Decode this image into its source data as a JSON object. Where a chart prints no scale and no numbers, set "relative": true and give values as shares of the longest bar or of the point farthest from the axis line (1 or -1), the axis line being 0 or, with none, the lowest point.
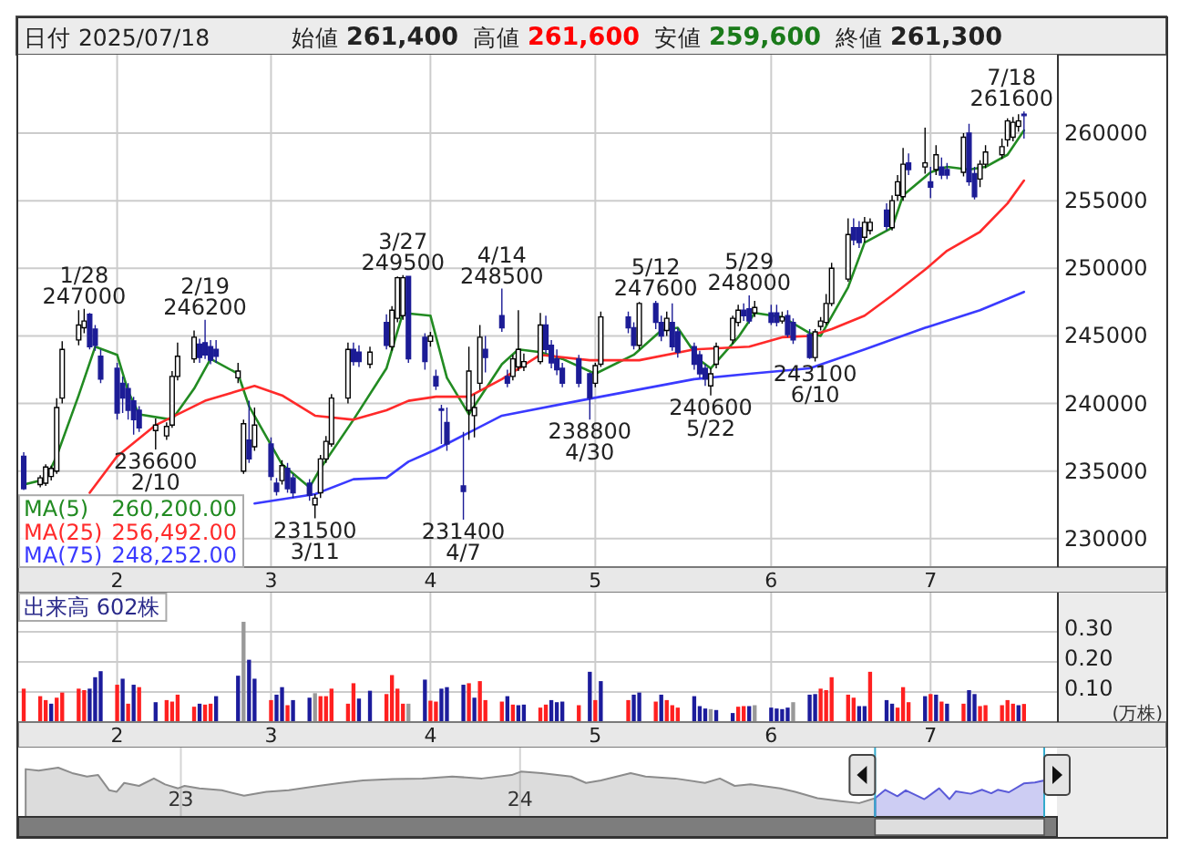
{
  "chart_data": [
    {
      "type": "other",
      "annotations": [
        "日付 2025/07/18",
        "始値",
        "261,400",
        "高値",
        "261,600",
        "安値",
        "259,600",
        "終値",
        "261,300"
      ]
    },
    {
      "type": "candlestick",
      "legend": "bottom left",
      "grid": true,
      "xlim": [
        "2025-01-16",
        "2025-07-24"
      ],
      "x": [
        "2025-01-17",
        "2025-01-20",
        "2025-01-21",
        "2025-01-22",
        "2025-01-23",
        "2025-01-24",
        "2025-01-27",
        "2025-01-28",
        "2025-01-29",
        "2025-01-30",
        "2025-01-31",
        "2025-02-03",
        "2025-02-04",
        "2025-02-05",
        "2025-02-06",
        "2025-02-07",
        "2025-02-10",
        "2025-02-12",
        "2025-02-13",
        "2025-02-14",
        "2025-02-17",
        "2025-02-18",
        "2025-02-19",
        "2025-02-20",
        "2025-02-21",
        "2025-02-25",
        "2025-02-26",
        "2025-02-27",
        "2025-02-28",
        "2025-03-03",
        "2025-03-04",
        "2025-03-05",
        "2025-03-06",
        "2025-03-07",
        "2025-03-10",
        "2025-03-11",
        "2025-03-12",
        "2025-03-13",
        "2025-03-14",
        "2025-03-17",
        "2025-03-18",
        "2025-03-19",
        "2025-03-21",
        "2025-03-24",
        "2025-03-25",
        "2025-03-26",
        "2025-03-27",
        "2025-03-28",
        "2025-03-31",
        "2025-04-01",
        "2025-04-02",
        "2025-04-03",
        "2025-04-04",
        "2025-04-07",
        "2025-04-08",
        "2025-04-09",
        "2025-04-10",
        "2025-04-11",
        "2025-04-14",
        "2025-04-15",
        "2025-04-16",
        "2025-04-17",
        "2025-04-18",
        "2025-04-21",
        "2025-04-22",
        "2025-04-23",
        "2025-04-24",
        "2025-04-25",
        "2025-04-28",
        "2025-04-30",
        "2025-05-01",
        "2025-05-02",
        "2025-05-07",
        "2025-05-08",
        "2025-05-09",
        "2025-05-12",
        "2025-05-13",
        "2025-05-14",
        "2025-05-15",
        "2025-05-16",
        "2025-05-19",
        "2025-05-20",
        "2025-05-21",
        "2025-05-22",
        "2025-05-23",
        "2025-05-26",
        "2025-05-27",
        "2025-05-28",
        "2025-05-29",
        "2025-05-30",
        "2025-06-02",
        "2025-06-03",
        "2025-06-04",
        "2025-06-05",
        "2025-06-06",
        "2025-06-09",
        "2025-06-10",
        "2025-06-11",
        "2025-06-12",
        "2025-06-13",
        "2025-06-16",
        "2025-06-17",
        "2025-06-18",
        "2025-06-19",
        "2025-06-20",
        "2025-06-23",
        "2025-06-24",
        "2025-06-25",
        "2025-06-26",
        "2025-06-27",
        "2025-06-30",
        "2025-07-01",
        "2025-07-02",
        "2025-07-03",
        "2025-07-04",
        "2025-07-07",
        "2025-07-08",
        "2025-07-09",
        "2025-07-10",
        "2025-07-11",
        "2025-07-14",
        "2025-07-15",
        "2025-07-16",
        "2025-07-17",
        "2025-07-18"
      ],
      "ohlc": [
        [
          236100,
          236400,
          233600,
          233700
        ],
        [
          234000,
          234700,
          233800,
          234500
        ],
        [
          234100,
          235500,
          233900,
          235300
        ],
        [
          234600,
          235400,
          234300,
          235200
        ],
        [
          235000,
          240400,
          234800,
          239700
        ],
        [
          240400,
          244600,
          240000,
          244000
        ],
        [
          244700,
          246900,
          244300,
          245800
        ],
        [
          245600,
          247000,
          245200,
          246100
        ],
        [
          246600,
          246700,
          244000,
          244200
        ],
        [
          245500,
          245800,
          243900,
          244300
        ],
        [
          243500,
          244000,
          241500,
          241800
        ],
        [
          242600,
          243000,
          238800,
          239300
        ],
        [
          241500,
          242000,
          239300,
          240400
        ],
        [
          241100,
          241500,
          238800,
          239500
        ],
        [
          240200,
          240500,
          237700,
          238800
        ],
        [
          239500,
          239800,
          237900,
          238200
        ],
        [
          238000,
          238900,
          236600,
          238400
        ],
        [
          237600,
          238600,
          237300,
          238300
        ],
        [
          238400,
          242400,
          238200,
          242000
        ],
        [
          242000,
          244500,
          241700,
          243500
        ],
        [
          243300,
          245400,
          243000,
          244900
        ],
        [
          244400,
          244800,
          243000,
          243400
        ],
        [
          244500,
          246200,
          243300,
          243600
        ],
        [
          244200,
          244700,
          242900,
          243200
        ],
        [
          244000,
          244700,
          243000,
          243500
        ],
        [
          241900,
          243000,
          241500,
          242400
        ],
        [
          235000,
          238800,
          234800,
          238500
        ],
        [
          237300,
          240200,
          235600,
          235900
        ],
        [
          236800,
          239700,
          236500,
          238400
        ],
        [
          237000,
          237500,
          234300,
          234600
        ],
        [
          234100,
          234500,
          233200,
          233500
        ],
        [
          234300,
          235800,
          234000,
          235400
        ],
        [
          235200,
          235600,
          233400,
          233700
        ],
        [
          234500,
          234800,
          233000,
          233400
        ],
        [
          234100,
          234400,
          232800,
          233200
        ],
        [
          232500,
          233300,
          231500,
          233000
        ],
        [
          233400,
          236200,
          233000,
          235900
        ],
        [
          235900,
          237600,
          235600,
          237200
        ],
        [
          237000,
          240700,
          236800,
          240400
        ],
        [
          240400,
          244500,
          240000,
          244000
        ],
        [
          244000,
          244500,
          242800,
          243100
        ],
        [
          243800,
          244300,
          242700,
          243100
        ],
        [
          242900,
          244200,
          242600,
          243800
        ],
        [
          246000,
          246600,
          244000,
          244300
        ],
        [
          244200,
          247200,
          243900,
          246900
        ],
        [
          246300,
          249400,
          246000,
          249300
        ],
        [
          246500,
          249500,
          246200,
          249300
        ],
        [
          249400,
          249400,
          243000,
          243300
        ],
        [
          244900,
          245200,
          242500,
          243100
        ],
        [
          244600,
          245300,
          244200,
          245000
        ],
        [
          242000,
          242500,
          241000,
          241300
        ],
        [
          239600,
          239900,
          237000,
          239500
        ],
        [
          238600,
          239700,
          236500,
          237000
        ],
        [
          233900,
          237900,
          231400,
          233500
        ],
        [
          239500,
          244200,
          237300,
          242400
        ],
        [
          239100,
          240700,
          237500,
          239700
        ],
        [
          241500,
          245800,
          241000,
          244900
        ],
        [
          244000,
          245000,
          242300,
          243400
        ],
        [
          246500,
          248500,
          245300,
          245600
        ],
        [
          242000,
          242500,
          241200,
          241500
        ],
        [
          242000,
          243600,
          241700,
          243300
        ],
        [
          242700,
          246900,
          242400,
          244000
        ],
        [
          242700,
          243700,
          242400,
          243100
        ],
        [
          243100,
          246700,
          242900,
          245800
        ],
        [
          245800,
          246500,
          243700,
          244000
        ],
        [
          244300,
          244700,
          242600,
          243000
        ],
        [
          243300,
          244000,
          242100,
          242500
        ],
        [
          242600,
          243000,
          241200,
          241500
        ],
        [
          243300,
          243600,
          241200,
          241500
        ],
        [
          242200,
          242300,
          238800,
          240400
        ],
        [
          241500,
          243000,
          241200,
          242800
        ],
        [
          242900,
          246800,
          242700,
          246400
        ],
        [
          246400,
          246800,
          245200,
          245600
        ],
        [
          245600,
          246000,
          244000,
          244300
        ],
        [
          244300,
          247500,
          244000,
          247400
        ],
        [
          247400,
          247600,
          245500,
          246000
        ],
        [
          246000,
          246500,
          244600,
          245000
        ],
        [
          245400,
          246800,
          245000,
          246300
        ],
        [
          246000,
          247400,
          243900,
          244200
        ],
        [
          245300,
          245600,
          243400,
          243800
        ],
        [
          244200,
          244500,
          242500,
          242900
        ],
        [
          243600,
          243900,
          241900,
          242200
        ],
        [
          242600,
          242900,
          241300,
          241800
        ],
        [
          241300,
          242600,
          240600,
          242200
        ],
        [
          242900,
          244500,
          242600,
          244200
        ],
        [
          244700,
          246500,
          244400,
          246300
        ],
        [
          246000,
          247300,
          245700,
          246900
        ],
        [
          246900,
          247400,
          246100,
          246500
        ],
        [
          247000,
          248000,
          245900,
          246100
        ],
        [
          246700,
          247600,
          246400,
          247100
        ],
        [
          246700,
          247300,
          245800,
          246000
        ],
        [
          246700,
          247300,
          245700,
          246000
        ],
        [
          246100,
          246800,
          245900,
          246400
        ],
        [
          246500,
          246900,
          244900,
          245100
        ],
        [
          246000,
          246300,
          244400,
          244700
        ],
        [
          245100,
          245500,
          243300,
          243400
        ],
        [
          243400,
          245500,
          243100,
          245300
        ],
        [
          245700,
          246400,
          245400,
          246100
        ],
        [
          246000,
          248100,
          245800,
          247400
        ],
        [
          247400,
          250400,
          247200,
          250000
        ],
        [
          249200,
          253700,
          249000,
          252500
        ],
        [
          253000,
          253700,
          251700,
          252100
        ],
        [
          253000,
          253500,
          251500,
          251900
        ],
        [
          252300,
          253800,
          251900,
          253400
        ],
        [
          252800,
          253700,
          252500,
          253400
        ],
        [
          254300,
          254800,
          252800,
          253100
        ],
        [
          253000,
          255400,
          252800,
          255000
        ],
        [
          255400,
          256900,
          255000,
          256400
        ],
        [
          255300,
          258900,
          255000,
          257700
        ],
        [
          257800,
          258500,
          256900,
          257300
        ],
        [
          257500,
          260400,
          257000,
          257800
        ],
        [
          256400,
          257500,
          255200,
          256000
        ],
        [
          257300,
          259100,
          256900,
          258400
        ],
        [
          257500,
          258200,
          256600,
          256900
        ],
        [
          257300,
          257800,
          256600,
          256900
        ],
        [
          257100,
          260000,
          256800,
          259700
        ],
        [
          260000,
          260700,
          256100,
          256400
        ],
        [
          257000,
          257500,
          255100,
          255300
        ],
        [
          256600,
          258000,
          256000,
          257700
        ],
        [
          257700,
          259100,
          257400,
          258600
        ],
        [
          258400,
          259600,
          258100,
          259000
        ],
        [
          259500,
          261100,
          259000,
          260900
        ],
        [
          259700,
          261200,
          259400,
          260800
        ],
        [
          260500,
          261400,
          260100,
          260900
        ],
        [
          261400,
          261600,
          259600,
          261300
        ]
      ],
      "series": [
        {
          "name": "MA(5)",
          "type": "line",
          "color": "#228b22",
          "x": [
            "2025-01-17",
            "2025-01-21",
            "2025-01-23",
            "2025-01-27",
            "2025-01-30",
            "2025-02-03",
            "2025-02-05",
            "2025-02-07",
            "2025-02-13",
            "2025-02-17",
            "2025-02-20",
            "2025-02-25",
            "2025-02-27",
            "2025-03-05",
            "2025-03-10",
            "2025-03-12",
            "2025-03-18",
            "2025-03-24",
            "2025-03-27",
            "2025-04-01",
            "2025-04-04",
            "2025-04-08",
            "2025-04-14",
            "2025-04-17",
            "2025-04-21",
            "2025-04-25",
            "2025-05-01",
            "2025-05-08",
            "2025-05-13",
            "2025-05-16",
            "2025-05-20",
            "2025-05-22",
            "2025-05-27",
            "2025-05-30",
            "2025-06-04",
            "2025-06-09",
            "2025-06-11",
            "2025-06-16",
            "2025-06-19",
            "2025-06-24",
            "2025-06-26",
            "2025-07-01",
            "2025-07-04",
            "2025-07-08",
            "2025-07-11",
            "2025-07-15",
            "2025-07-18"
          ],
          "values": [
            234000,
            234400,
            236100,
            240600,
            244200,
            243600,
            240900,
            239200,
            238800,
            241100,
            243300,
            242200,
            239800,
            235500,
            233800,
            235200,
            238800,
            242600,
            246700,
            246500,
            241900,
            239200,
            242900,
            244000,
            243800,
            243300,
            242200,
            243600,
            245400,
            245600,
            243200,
            242600,
            244900,
            246700,
            246400,
            245200,
            245000,
            248600,
            251900,
            253000,
            255400,
            257100,
            257500,
            257300,
            257500,
            258400,
            260200
          ]
        },
        {
          "name": "MA(25)",
          "type": "line",
          "color": "#ff2a2a",
          "x": [
            "2025-01-29",
            "2025-02-03",
            "2025-02-10",
            "2025-02-19",
            "2025-02-28",
            "2025-03-05",
            "2025-03-11",
            "2025-03-18",
            "2025-03-24",
            "2025-03-28",
            "2025-04-02",
            "2025-04-08",
            "2025-04-14",
            "2025-04-21",
            "2025-04-30",
            "2025-05-09",
            "2025-05-19",
            "2025-05-29",
            "2025-06-04",
            "2025-06-09",
            "2025-06-13",
            "2025-06-19",
            "2025-06-24",
            "2025-06-30",
            "2025-07-04",
            "2025-07-10",
            "2025-07-15",
            "2025-07-18"
          ],
          "values": [
            233400,
            236100,
            238400,
            240200,
            241300,
            240600,
            239100,
            238800,
            239500,
            240200,
            240500,
            240500,
            241800,
            243600,
            243200,
            243200,
            244000,
            244200,
            244900,
            245000,
            245500,
            246500,
            248000,
            249900,
            251300,
            252700,
            254800,
            256492
          ]
        },
        {
          "name": "MA(75)",
          "type": "line",
          "color": "#3a3aff",
          "x": [
            "2025-02-28",
            "2025-03-11",
            "2025-03-18",
            "2025-03-24",
            "2025-03-28",
            "2025-04-02",
            "2025-04-14",
            "2025-04-28",
            "2025-05-19",
            "2025-05-29",
            "2025-06-09",
            "2025-06-19",
            "2025-06-30",
            "2025-07-10",
            "2025-07-18"
          ],
          "values": [
            232600,
            233300,
            234400,
            234500,
            235700,
            236600,
            239100,
            240200,
            241800,
            242200,
            242600,
            244000,
            245600,
            246900,
            248252
          ]
        }
      ],
      "ylim": [
        227900,
        265800
      ],
      "yticks": [
        230000,
        235000,
        240000,
        245000,
        250000,
        255000,
        260000
      ],
      "xticks": [
        {
          "value": "2025-02-03",
          "label": "2"
        },
        {
          "value": "2025-03-03",
          "label": "3"
        },
        {
          "value": "2025-04-01",
          "label": "4"
        },
        {
          "value": "2025-05-01",
          "label": "5"
        },
        {
          "value": "2025-06-02",
          "label": "6"
        },
        {
          "value": "2025-07-01",
          "label": "7"
        }
      ],
      "annotations": [
        {
          "text": "1/28\n247000",
          "x": "2025-01-28",
          "y": 247000
        },
        {
          "text": "236600\n2/10",
          "x": "2025-02-10",
          "y": 236600
        },
        {
          "text": "2/19\n246200",
          "x": "2025-02-19",
          "y": 246200
        },
        {
          "text": "231500\n3/11",
          "x": "2025-03-11",
          "y": 231500
        },
        {
          "text": "3/27\n249500",
          "x": "2025-03-27",
          "y": 249500
        },
        {
          "text": "231400\n4/7",
          "x": "2025-04-07",
          "y": 231400
        },
        {
          "text": "4/14\n248500",
          "x": "2025-04-14",
          "y": 248500
        },
        {
          "text": "238800\n4/30",
          "x": "2025-04-30",
          "y": 238800
        },
        {
          "text": "5/12\n247600",
          "x": "2025-05-12",
          "y": 247600
        },
        {
          "text": "240600\n5/22",
          "x": "2025-05-22",
          "y": 240600
        },
        {
          "text": "5/29\n248000",
          "x": "2025-05-29",
          "y": 248000
        },
        {
          "text": "243100\n6/10",
          "x": "2025-06-10",
          "y": 243100
        },
        {
          "text": "7/18\n261600",
          "x": "2025-07-18",
          "y": 261600
        },
        "260,200.00",
        "256,492.00",
        "248,252.00"
      ]
    },
    {
      "type": "bar",
      "title": "出来高 602株",
      "ylabel": "(万株)",
      "grid": true,
      "xlim": [
        "2025-01-16",
        "2025-07-24"
      ],
      "x": [
        "2025-01-17",
        "2025-01-20",
        "2025-01-21",
        "2025-01-22",
        "2025-01-23",
        "2025-01-24",
        "2025-01-27",
        "2025-01-28",
        "2025-01-29",
        "2025-01-30",
        "2025-01-31",
        "2025-02-03",
        "2025-02-04",
        "2025-02-05",
        "2025-02-06",
        "2025-02-07",
        "2025-02-10",
        "2025-02-12",
        "2025-02-13",
        "2025-02-14",
        "2025-02-17",
        "2025-02-18",
        "2025-02-19",
        "2025-02-20",
        "2025-02-21",
        "2025-02-25",
        "2025-02-26",
        "2025-02-27",
        "2025-02-28",
        "2025-03-03",
        "2025-03-04",
        "2025-03-05",
        "2025-03-06",
        "2025-03-07",
        "2025-03-10",
        "2025-03-11",
        "2025-03-12",
        "2025-03-13",
        "2025-03-14",
        "2025-03-17",
        "2025-03-18",
        "2025-03-19",
        "2025-03-21",
        "2025-03-24",
        "2025-03-25",
        "2025-03-26",
        "2025-03-27",
        "2025-03-28",
        "2025-03-31",
        "2025-04-01",
        "2025-04-02",
        "2025-04-03",
        "2025-04-04",
        "2025-04-07",
        "2025-04-08",
        "2025-04-09",
        "2025-04-10",
        "2025-04-11",
        "2025-04-14",
        "2025-04-15",
        "2025-04-16",
        "2025-04-17",
        "2025-04-18",
        "2025-04-21",
        "2025-04-22",
        "2025-04-23",
        "2025-04-24",
        "2025-04-25",
        "2025-04-28",
        "2025-04-30",
        "2025-05-01",
        "2025-05-02",
        "2025-05-07",
        "2025-05-08",
        "2025-05-09",
        "2025-05-12",
        "2025-05-13",
        "2025-05-14",
        "2025-05-15",
        "2025-05-16",
        "2025-05-19",
        "2025-05-20",
        "2025-05-21",
        "2025-05-22",
        "2025-05-23",
        "2025-05-26",
        "2025-05-27",
        "2025-05-28",
        "2025-05-29",
        "2025-05-30",
        "2025-06-02",
        "2025-06-03",
        "2025-06-04",
        "2025-06-05",
        "2025-06-06",
        "2025-06-09",
        "2025-06-10",
        "2025-06-11",
        "2025-06-12",
        "2025-06-13",
        "2025-06-16",
        "2025-06-17",
        "2025-06-18",
        "2025-06-19",
        "2025-06-20",
        "2025-06-23",
        "2025-06-24",
        "2025-06-25",
        "2025-06-26",
        "2025-06-27",
        "2025-06-30",
        "2025-07-01",
        "2025-07-02",
        "2025-07-03",
        "2025-07-04",
        "2025-07-07",
        "2025-07-08",
        "2025-07-09",
        "2025-07-10",
        "2025-07-11",
        "2025-07-14",
        "2025-07-15",
        "2025-07-16",
        "2025-07-17",
        "2025-07-18"
      ],
      "values": [
        0.111,
        0.086,
        0.073,
        0.061,
        0.081,
        0.098,
        0.111,
        0.106,
        0.111,
        0.149,
        0.169,
        0.124,
        0.144,
        0.061,
        0.124,
        0.116,
        0.066,
        0.073,
        0.068,
        0.091,
        0.051,
        0.061,
        0.058,
        0.061,
        0.086,
        0.154,
        0.333,
        0.207,
        0.144,
        0.073,
        0.091,
        0.116,
        0.056,
        0.073,
        0.081,
        0.096,
        0.086,
        0.086,
        0.111,
        0.061,
        0.129,
        0.078,
        0.104,
        0.093,
        0.156,
        0.111,
        0.061,
        0.061,
        0.141,
        0.071,
        0.068,
        0.111,
        0.116,
        0.124,
        0.129,
        0.081,
        0.136,
        0.073,
        0.068,
        0.086,
        0.058,
        0.056,
        0.058,
        0.048,
        0.058,
        0.073,
        0.066,
        0.068,
        0.056,
        0.167,
        0.073,
        0.136,
        0.073,
        0.091,
        0.098,
        0.068,
        0.091,
        0.073,
        0.056,
        0.048,
        0.086,
        0.053,
        0.045,
        0.043,
        0.04,
        0.03,
        0.051,
        0.053,
        0.053,
        0.056,
        0.048,
        0.045,
        0.043,
        0.048,
        0.066,
        0.091,
        0.093,
        0.111,
        0.106,
        0.149,
        0.091,
        0.081,
        0.053,
        0.053,
        0.167,
        0.073,
        0.061,
        0.048,
        0.116,
        0.066,
        0.086,
        0.093,
        0.091,
        0.068,
        0.061,
        0.061,
        0.106,
        0.093,
        0.053,
        0.056,
        0.056,
        0.073,
        0.061,
        0.056,
        0.0602
      ],
      "colors": [
        "#ff2020",
        "#ff2020",
        "#ff2020",
        "#1c1c9c",
        "#ff2020",
        "#ff2020",
        "#ff2020",
        "#ff2020",
        "#1c1c9c",
        "#1c1c9c",
        "#1c1c9c",
        "#ff2020",
        "#1c1c9c",
        "#ff2020",
        "#1c1c9c",
        "#ff2020",
        "#1c1c9c",
        "#ff2020",
        "#ff2020",
        "#ff2020",
        "#ff2020",
        "#1c1c9c",
        "#ff2020",
        "#ff2020",
        "#1c1c9c",
        "#1c1c9c",
        "#999999",
        "#1c1c9c",
        "#1c1c9c",
        "#ff2020",
        "#1c1c9c",
        "#1c1c9c",
        "#ff2020",
        "#1c1c9c",
        "#1c1c9c",
        "#999999",
        "#ff2020",
        "#ff2020",
        "#ff2020",
        "#ff2020",
        "#ff2020",
        "#1c1c9c",
        "#1c1c9c",
        "#ff2020",
        "#ff2020",
        "#ff2020",
        "#ff2020",
        "#999999",
        "#1c1c9c",
        "#ff2020",
        "#ff2020",
        "#1c1c9c",
        "#1c1c9c",
        "#1c1c9c",
        "#ff2020",
        "#1c1c9c",
        "#ff2020",
        "#ff2020",
        "#ff2020",
        "#1c1c9c",
        "#ff2020",
        "#1c1c9c",
        "#1c1c9c",
        "#ff2020",
        "#ff2020",
        "#1c1c9c",
        "#1c1c9c",
        "#1c1c9c",
        "#ff2020",
        "#1c1c9c",
        "#ff2020",
        "#1c1c9c",
        "#ff2020",
        "#1c1c9c",
        "#1c1c9c",
        "#ff2020",
        "#1c1c9c",
        "#ff2020",
        "#ff2020",
        "#ff2020",
        "#1c1c9c",
        "#1c1c9c",
        "#1c1c9c",
        "#999999",
        "#1c1c9c",
        "#1c1c9c",
        "#ff2020",
        "#ff2020",
        "#1c1c9c",
        "#999999",
        "#1c1c9c",
        "#1c1c9c",
        "#1c1c9c",
        "#1c1c9c",
        "#999999",
        "#1c1c9c",
        "#1c1c9c",
        "#ff2020",
        "#ff2020",
        "#ff2020",
        "#ff2020",
        "#ff2020",
        "#1c1c9c",
        "#1c1c9c",
        "#ff2020",
        "#1c1c9c",
        "#1c1c9c",
        "#ff2020",
        "#ff2020",
        "#ff2020",
        "#1c1c9c",
        "#ff2020",
        "#1c1c9c",
        "#ff2020",
        "#1c1c9c",
        "#ff2020",
        "#1c1c9c",
        "#1c1c9c",
        "#ff2020",
        "#ff2020",
        "#ff2020",
        "#ff2020",
        "#ff2020",
        "#1c1c9c",
        "#ff2020"
      ],
      "ylim": [
        0,
        0.43
      ],
      "yticks": [
        {
          "value": 0.1,
          "label": "0.10"
        },
        {
          "value": 0.2,
          "label": "0.20"
        },
        {
          "value": 0.3,
          "label": "0.30"
        }
      ],
      "xticks": [
        {
          "value": "2025-02-03",
          "label": "2"
        },
        {
          "value": "2025-03-03",
          "label": "3"
        },
        {
          "value": "2025-04-01",
          "label": "4"
        },
        {
          "value": "2025-05-01",
          "label": "5"
        },
        {
          "value": "2025-06-02",
          "label": "6"
        },
        {
          "value": "2025-07-01",
          "label": "7"
        }
      ]
    },
    {
      "type": "area",
      "relative": true,
      "grid": "x",
      "xlim": [
        "2022-07-10",
        "2025-07-18"
      ],
      "xticks": [
        {
          "value": "2023-01-01",
          "label": "23"
        },
        {
          "value": "2024-01-01",
          "label": "24"
        }
      ],
      "series": [
        {
          "type": "area",
          "color": "#8c8c8c",
          "x": [
            "2022-07-18",
            "2022-08-01",
            "2022-08-22",
            "2022-09-06",
            "2022-09-22",
            "2022-10-04",
            "2022-10-16",
            "2022-10-24",
            "2022-11-01",
            "2022-11-17",
            "2022-12-03",
            "2022-12-15",
            "2022-12-29",
            "2023-01-05",
            "2023-01-21",
            "2023-02-14",
            "2023-03-10",
            "2023-04-03",
            "2023-04-27",
            "2023-05-29",
            "2023-06-22",
            "2023-07-16",
            "2023-08-17",
            "2023-09-18",
            "2023-10-20",
            "2023-11-21",
            "2023-12-23",
            "2024-01-02",
            "2024-01-24",
            "2024-02-25",
            "2024-03-12",
            "2024-03-28",
            "2024-04-29",
            "2024-05-15",
            "2024-06-16",
            "2024-07-18",
            "2024-08-03",
            "2024-08-19",
            "2024-09-05",
            "2024-10-07",
            "2024-10-23",
            "2024-11-16",
            "2024-12-11",
            "2024-12-31",
            "2025-01-17"
          ],
          "values": [
            0.97,
            0.94,
            1.0,
            0.89,
            0.82,
            0.85,
            0.54,
            0.51,
            0.69,
            0.63,
            0.78,
            0.66,
            0.58,
            0.63,
            0.58,
            0.54,
            0.43,
            0.51,
            0.54,
            0.63,
            0.69,
            0.74,
            0.77,
            0.78,
            0.82,
            0.78,
            0.85,
            0.92,
            0.89,
            0.82,
            0.69,
            0.74,
            0.89,
            0.82,
            0.78,
            0.69,
            0.78,
            0.63,
            0.66,
            0.58,
            0.51,
            0.38,
            0.32,
            0.28,
            0.38
          ]
        },
        {
          "type": "area",
          "color": "#5a5ad8",
          "x": [
            "2025-01-17",
            "2025-01-28",
            "2025-02-10",
            "2025-02-19",
            "2025-03-11",
            "2025-03-27",
            "2025-04-07",
            "2025-04-14",
            "2025-04-30",
            "2025-05-12",
            "2025-05-22",
            "2025-05-29",
            "2025-06-10",
            "2025-06-26",
            "2025-07-08",
            "2025-07-18"
          ],
          "values": [
            0.38,
            0.55,
            0.42,
            0.54,
            0.36,
            0.58,
            0.36,
            0.52,
            0.47,
            0.55,
            0.48,
            0.55,
            0.5,
            0.68,
            0.7,
            0.74
          ]
        }
      ]
    }
  ]
}
